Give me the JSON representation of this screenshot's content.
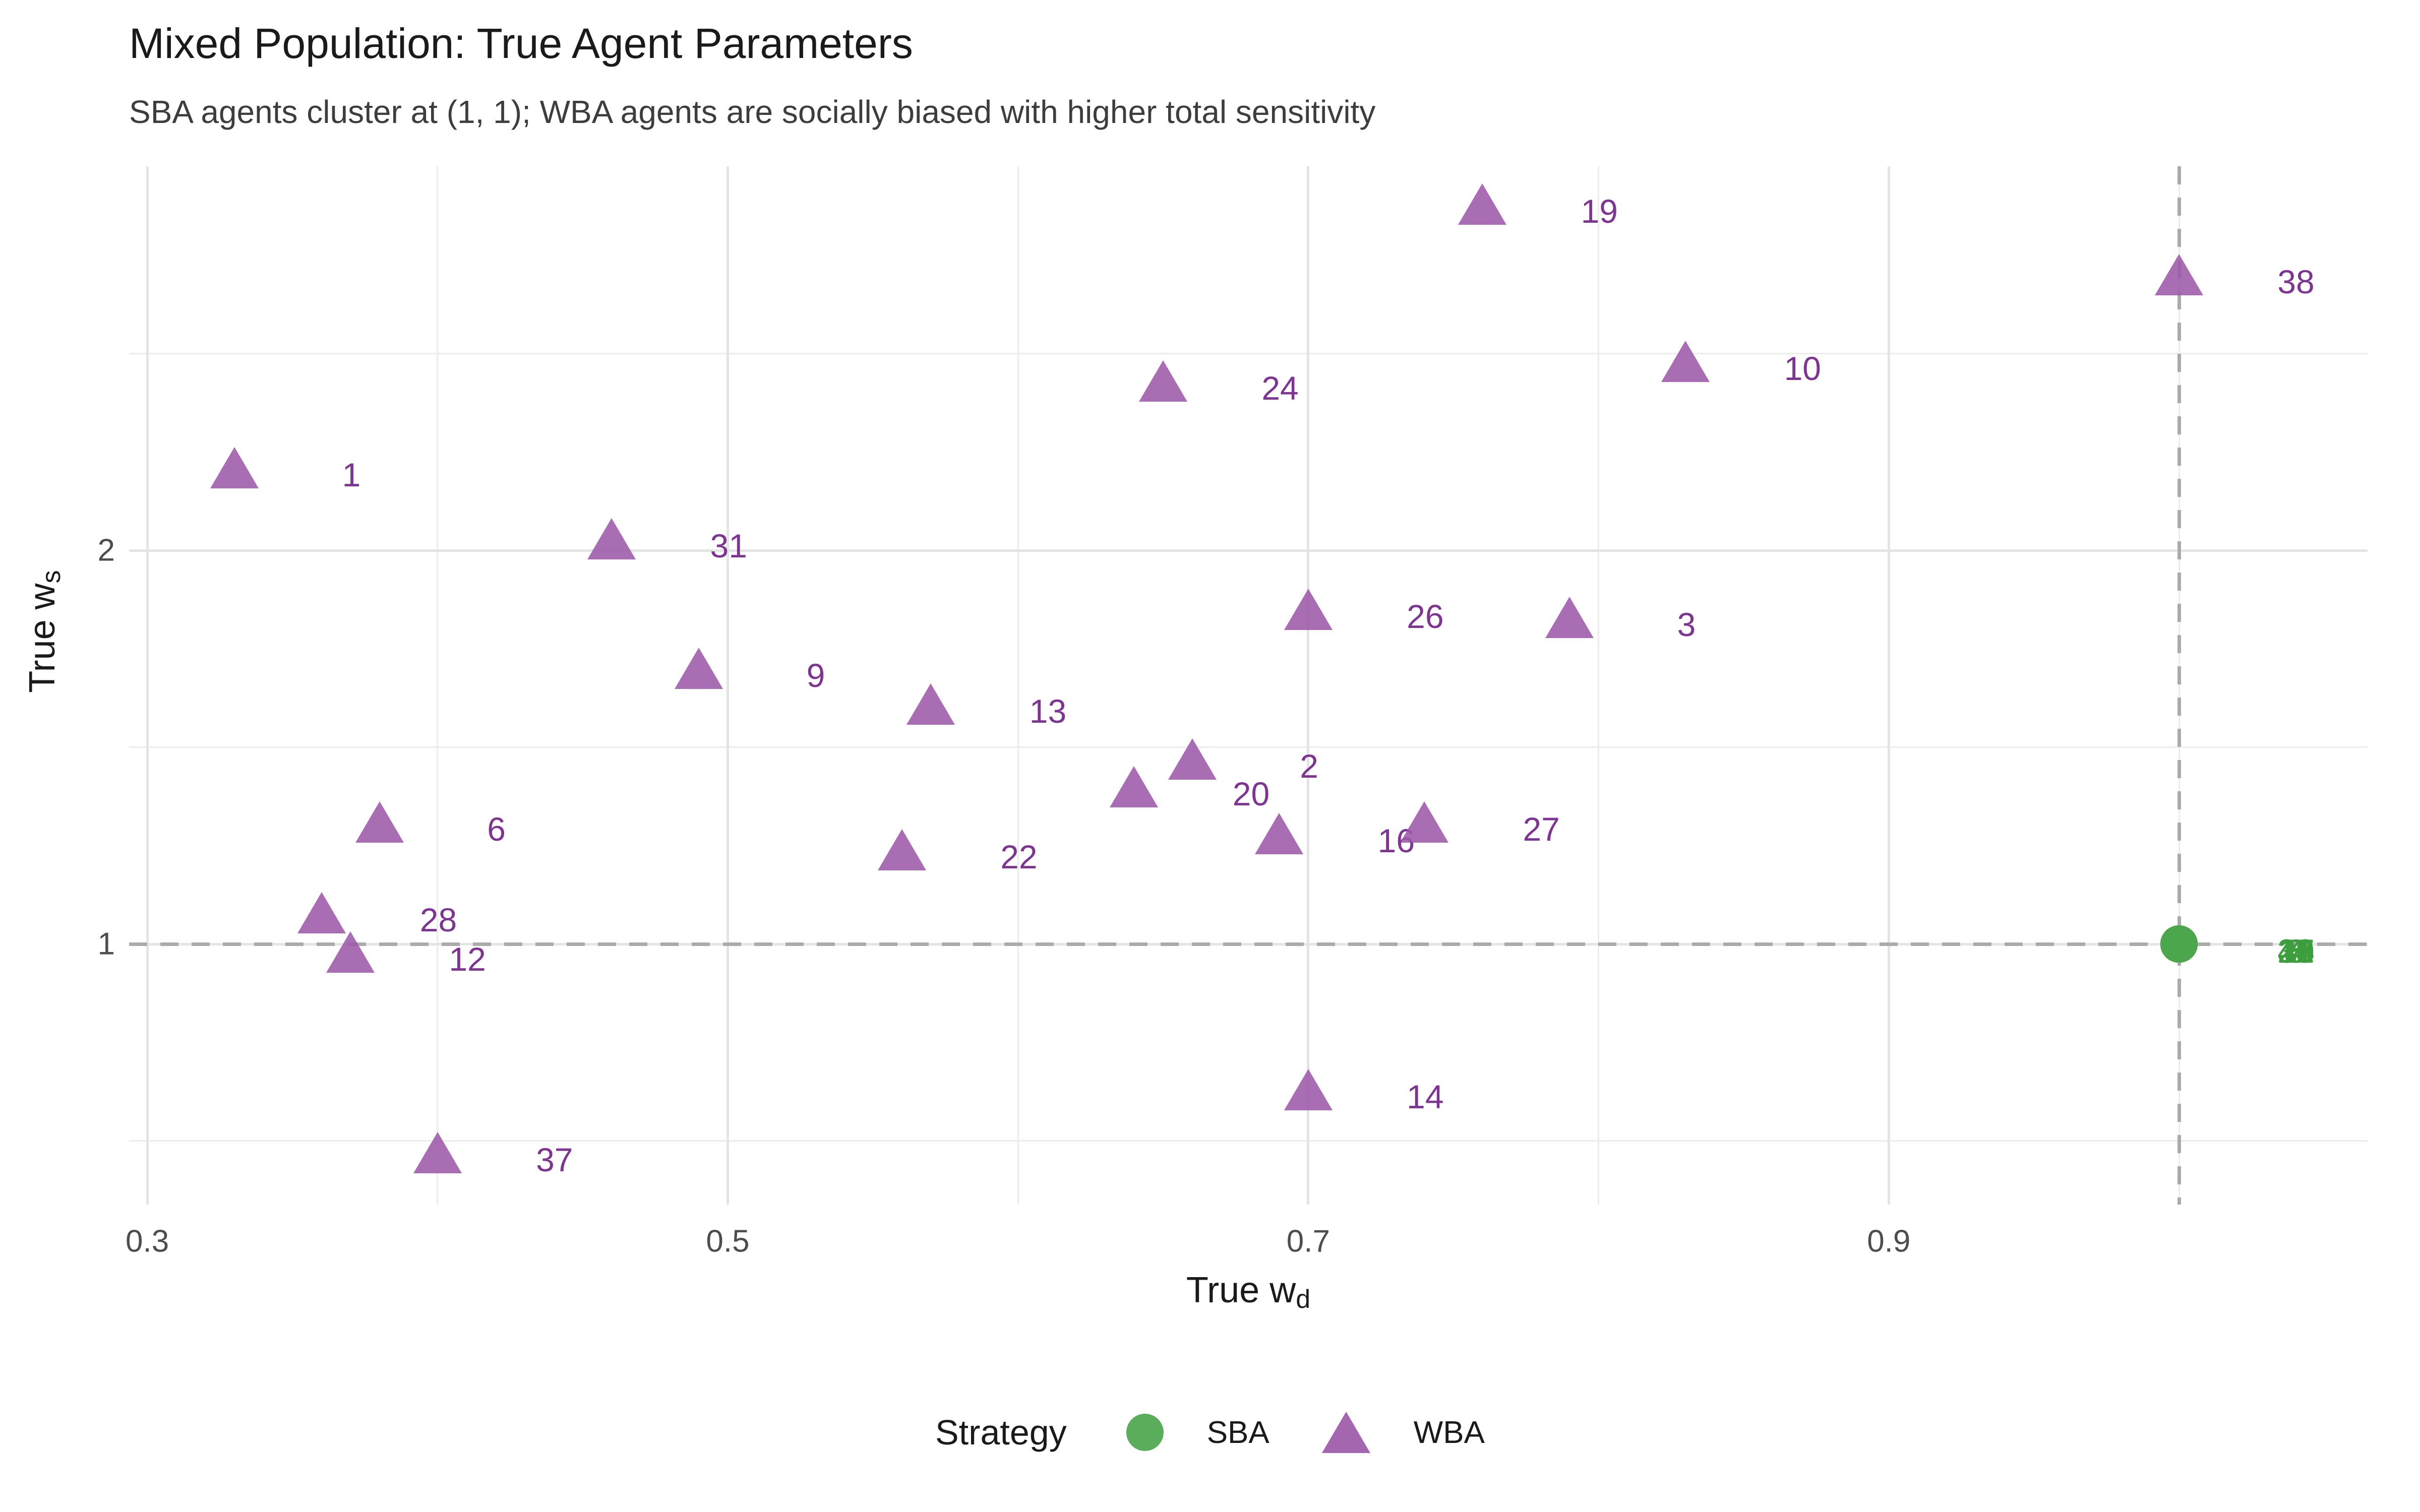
{
  "title": "Mixed Population: True Agent Parameters",
  "subtitle": "SBA agents cluster at (1, 1); WBA agents are socially biased with higher total sensitivity",
  "axes": {
    "x": {
      "title_prefix": "True w",
      "title_sub": "d",
      "ticks": [
        {
          "value": 0.3,
          "label": "0.3"
        },
        {
          "value": 0.5,
          "label": "0.5"
        },
        {
          "value": 0.7,
          "label": "0.7"
        },
        {
          "value": 0.9,
          "label": "0.9"
        }
      ]
    },
    "y": {
      "title_prefix": "True w",
      "title_sub": "s",
      "ticks": [
        {
          "value": 1,
          "label": "1"
        },
        {
          "value": 2,
          "label": "2"
        }
      ]
    }
  },
  "legend": {
    "title": "Strategy",
    "items": [
      {
        "label": "SBA",
        "marker": "circle"
      },
      {
        "label": "WBA",
        "marker": "triangle"
      }
    ]
  },
  "colors": {
    "wba_marker": "#9c59a8",
    "wba_label": "#7e3591",
    "sba_marker": "#4ca64c",
    "sba_label": "#3c9e3c",
    "grid_major": "#e4e4e4",
    "grid_minor": "#ececec",
    "refline": "#ababab",
    "title_text": "#1a1a1a",
    "subtitle_text": "#3d3d3d",
    "tick_text": "#4d4d4d"
  },
  "chart_data": {
    "type": "scatter",
    "title": "Mixed Population: True Agent Parameters",
    "subtitle": "SBA agents cluster at (1, 1); WBA agents are socially biased with higher total sensitivity",
    "xlabel": "True w_d",
    "ylabel": "True w_s",
    "xlim": [
      0.29,
      1.065
    ],
    "ylim": [
      0.34,
      2.98
    ],
    "x_major_gridlines": [
      0.3,
      0.5,
      0.7,
      0.9
    ],
    "x_minor_gridlines": [
      0.4,
      0.6,
      0.8,
      1.0
    ],
    "y_major_gridlines": [
      1,
      2
    ],
    "y_minor_gridlines": [
      0.5,
      1.5,
      2.5
    ],
    "reference_lines": {
      "x": 1.0,
      "y": 1.0,
      "style": "dashed"
    },
    "grid": true,
    "legend_position": "bottom",
    "label_offset_note": "agent id labels sit ~0.04 x-units right of each marker",
    "series": [
      {
        "name": "WBA",
        "marker": "triangle",
        "points": [
          {
            "id": "1",
            "x": 0.33,
            "y": 2.21
          },
          {
            "id": "2",
            "x": 0.66,
            "y": 1.47
          },
          {
            "id": "3",
            "x": 0.79,
            "y": 1.83
          },
          {
            "id": "6",
            "x": 0.38,
            "y": 1.31
          },
          {
            "id": "9",
            "x": 0.49,
            "y": 1.7
          },
          {
            "id": "10",
            "x": 0.83,
            "y": 2.48
          },
          {
            "id": "12",
            "x": 0.37,
            "y": 0.98
          },
          {
            "id": "13",
            "x": 0.57,
            "y": 1.61
          },
          {
            "id": "14",
            "x": 0.7,
            "y": 0.63
          },
          {
            "id": "16",
            "x": 0.69,
            "y": 1.28
          },
          {
            "id": "19",
            "x": 0.76,
            "y": 2.88
          },
          {
            "id": "20",
            "x": 0.64,
            "y": 1.4
          },
          {
            "id": "22",
            "x": 0.56,
            "y": 1.24
          },
          {
            "id": "24",
            "x": 0.65,
            "y": 2.43
          },
          {
            "id": "26",
            "x": 0.7,
            "y": 1.85
          },
          {
            "id": "27",
            "x": 0.74,
            "y": 1.31
          },
          {
            "id": "28",
            "x": 0.36,
            "y": 1.08
          },
          {
            "id": "31",
            "x": 0.46,
            "y": 2.03
          },
          {
            "id": "37",
            "x": 0.4,
            "y": 0.47
          },
          {
            "id": "38",
            "x": 1.0,
            "y": 2.7
          }
        ]
      },
      {
        "name": "SBA",
        "marker": "circle",
        "points": [
          {
            "id": "4",
            "x": 1.0,
            "y": 1.0
          },
          {
            "id": "5",
            "x": 1.0,
            "y": 1.0
          },
          {
            "id": "7",
            "x": 1.0,
            "y": 1.0
          },
          {
            "id": "8",
            "x": 1.0,
            "y": 1.0
          },
          {
            "id": "11",
            "x": 1.0,
            "y": 1.0
          },
          {
            "id": "15",
            "x": 1.0,
            "y": 1.0
          },
          {
            "id": "17",
            "x": 1.0,
            "y": 1.0
          },
          {
            "id": "18",
            "x": 1.0,
            "y": 1.0
          },
          {
            "id": "21",
            "x": 1.0,
            "y": 1.0
          },
          {
            "id": "23",
            "x": 1.0,
            "y": 1.0
          },
          {
            "id": "25",
            "x": 1.0,
            "y": 1.0
          },
          {
            "id": "29",
            "x": 1.0,
            "y": 1.0
          },
          {
            "id": "30",
            "x": 1.0,
            "y": 1.0
          },
          {
            "id": "32",
            "x": 1.0,
            "y": 1.0
          },
          {
            "id": "33",
            "x": 1.0,
            "y": 1.0
          },
          {
            "id": "34",
            "x": 1.0,
            "y": 1.0
          },
          {
            "id": "35",
            "x": 1.0,
            "y": 1.0
          },
          {
            "id": "36",
            "x": 1.0,
            "y": 1.0
          },
          {
            "id": "39",
            "x": 1.0,
            "y": 1.0
          },
          {
            "id": "40",
            "x": 1.0,
            "y": 1.0
          }
        ]
      }
    ]
  }
}
